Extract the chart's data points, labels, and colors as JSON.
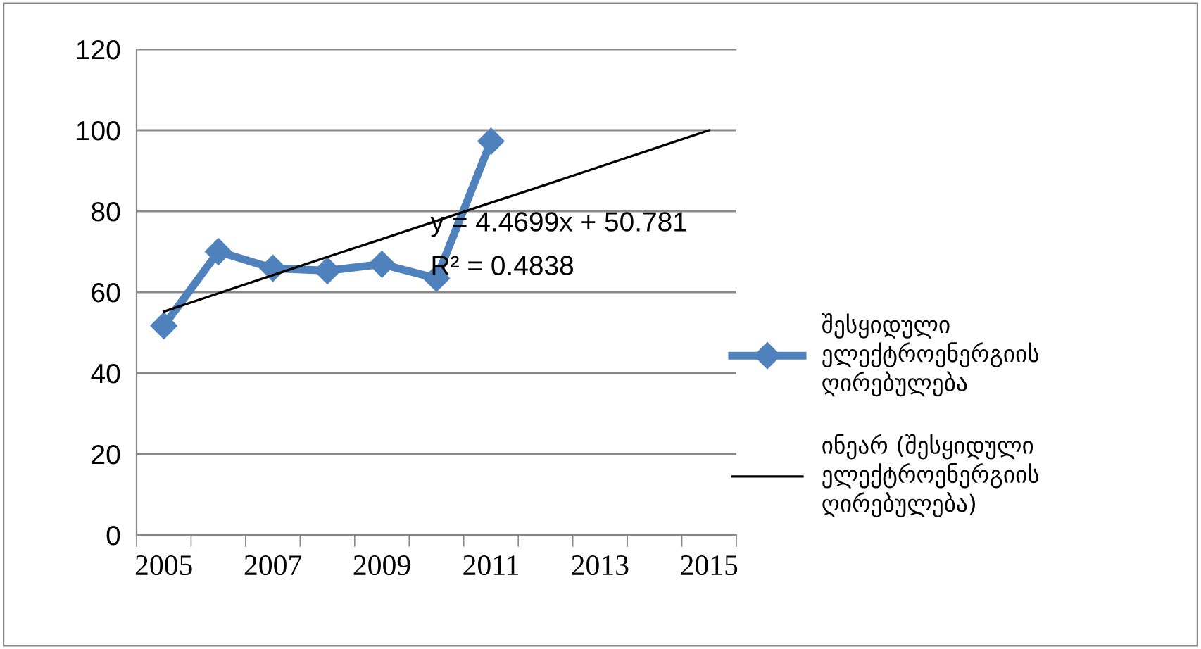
{
  "chart_data": {
    "type": "line",
    "categories": [
      "2005",
      null,
      "2007",
      null,
      "2009",
      null,
      "2011",
      null,
      "2013",
      null,
      "2015"
    ],
    "series": [
      {
        "name": "შესყიდული\nელექტროენერგიის\nღირებულება",
        "color": "#4f81bd",
        "marker": "diamond",
        "values": [
          51.7,
          70,
          65.9,
          65.3,
          66.9,
          63.4,
          97.3,
          null,
          null,
          null,
          null
        ]
      },
      {
        "name": "ინეარ (შესყიდული\nელექტროენერგიის\nღირებულება)",
        "color": "#000000",
        "marker": "none",
        "values": [
          55.2,
          59.7,
          64.2,
          68.7,
          73.1,
          77.6,
          82.1,
          86.5,
          91.0,
          95.5,
          100.0
        ]
      }
    ],
    "ylim": [
      0,
      120
    ],
    "yticks": [
      0,
      20,
      40,
      60,
      80,
      100,
      120
    ],
    "grid": "y",
    "legend": "right",
    "annotations": [
      "y = 4.4699x + 50.781",
      "R² = 0.4838"
    ]
  }
}
